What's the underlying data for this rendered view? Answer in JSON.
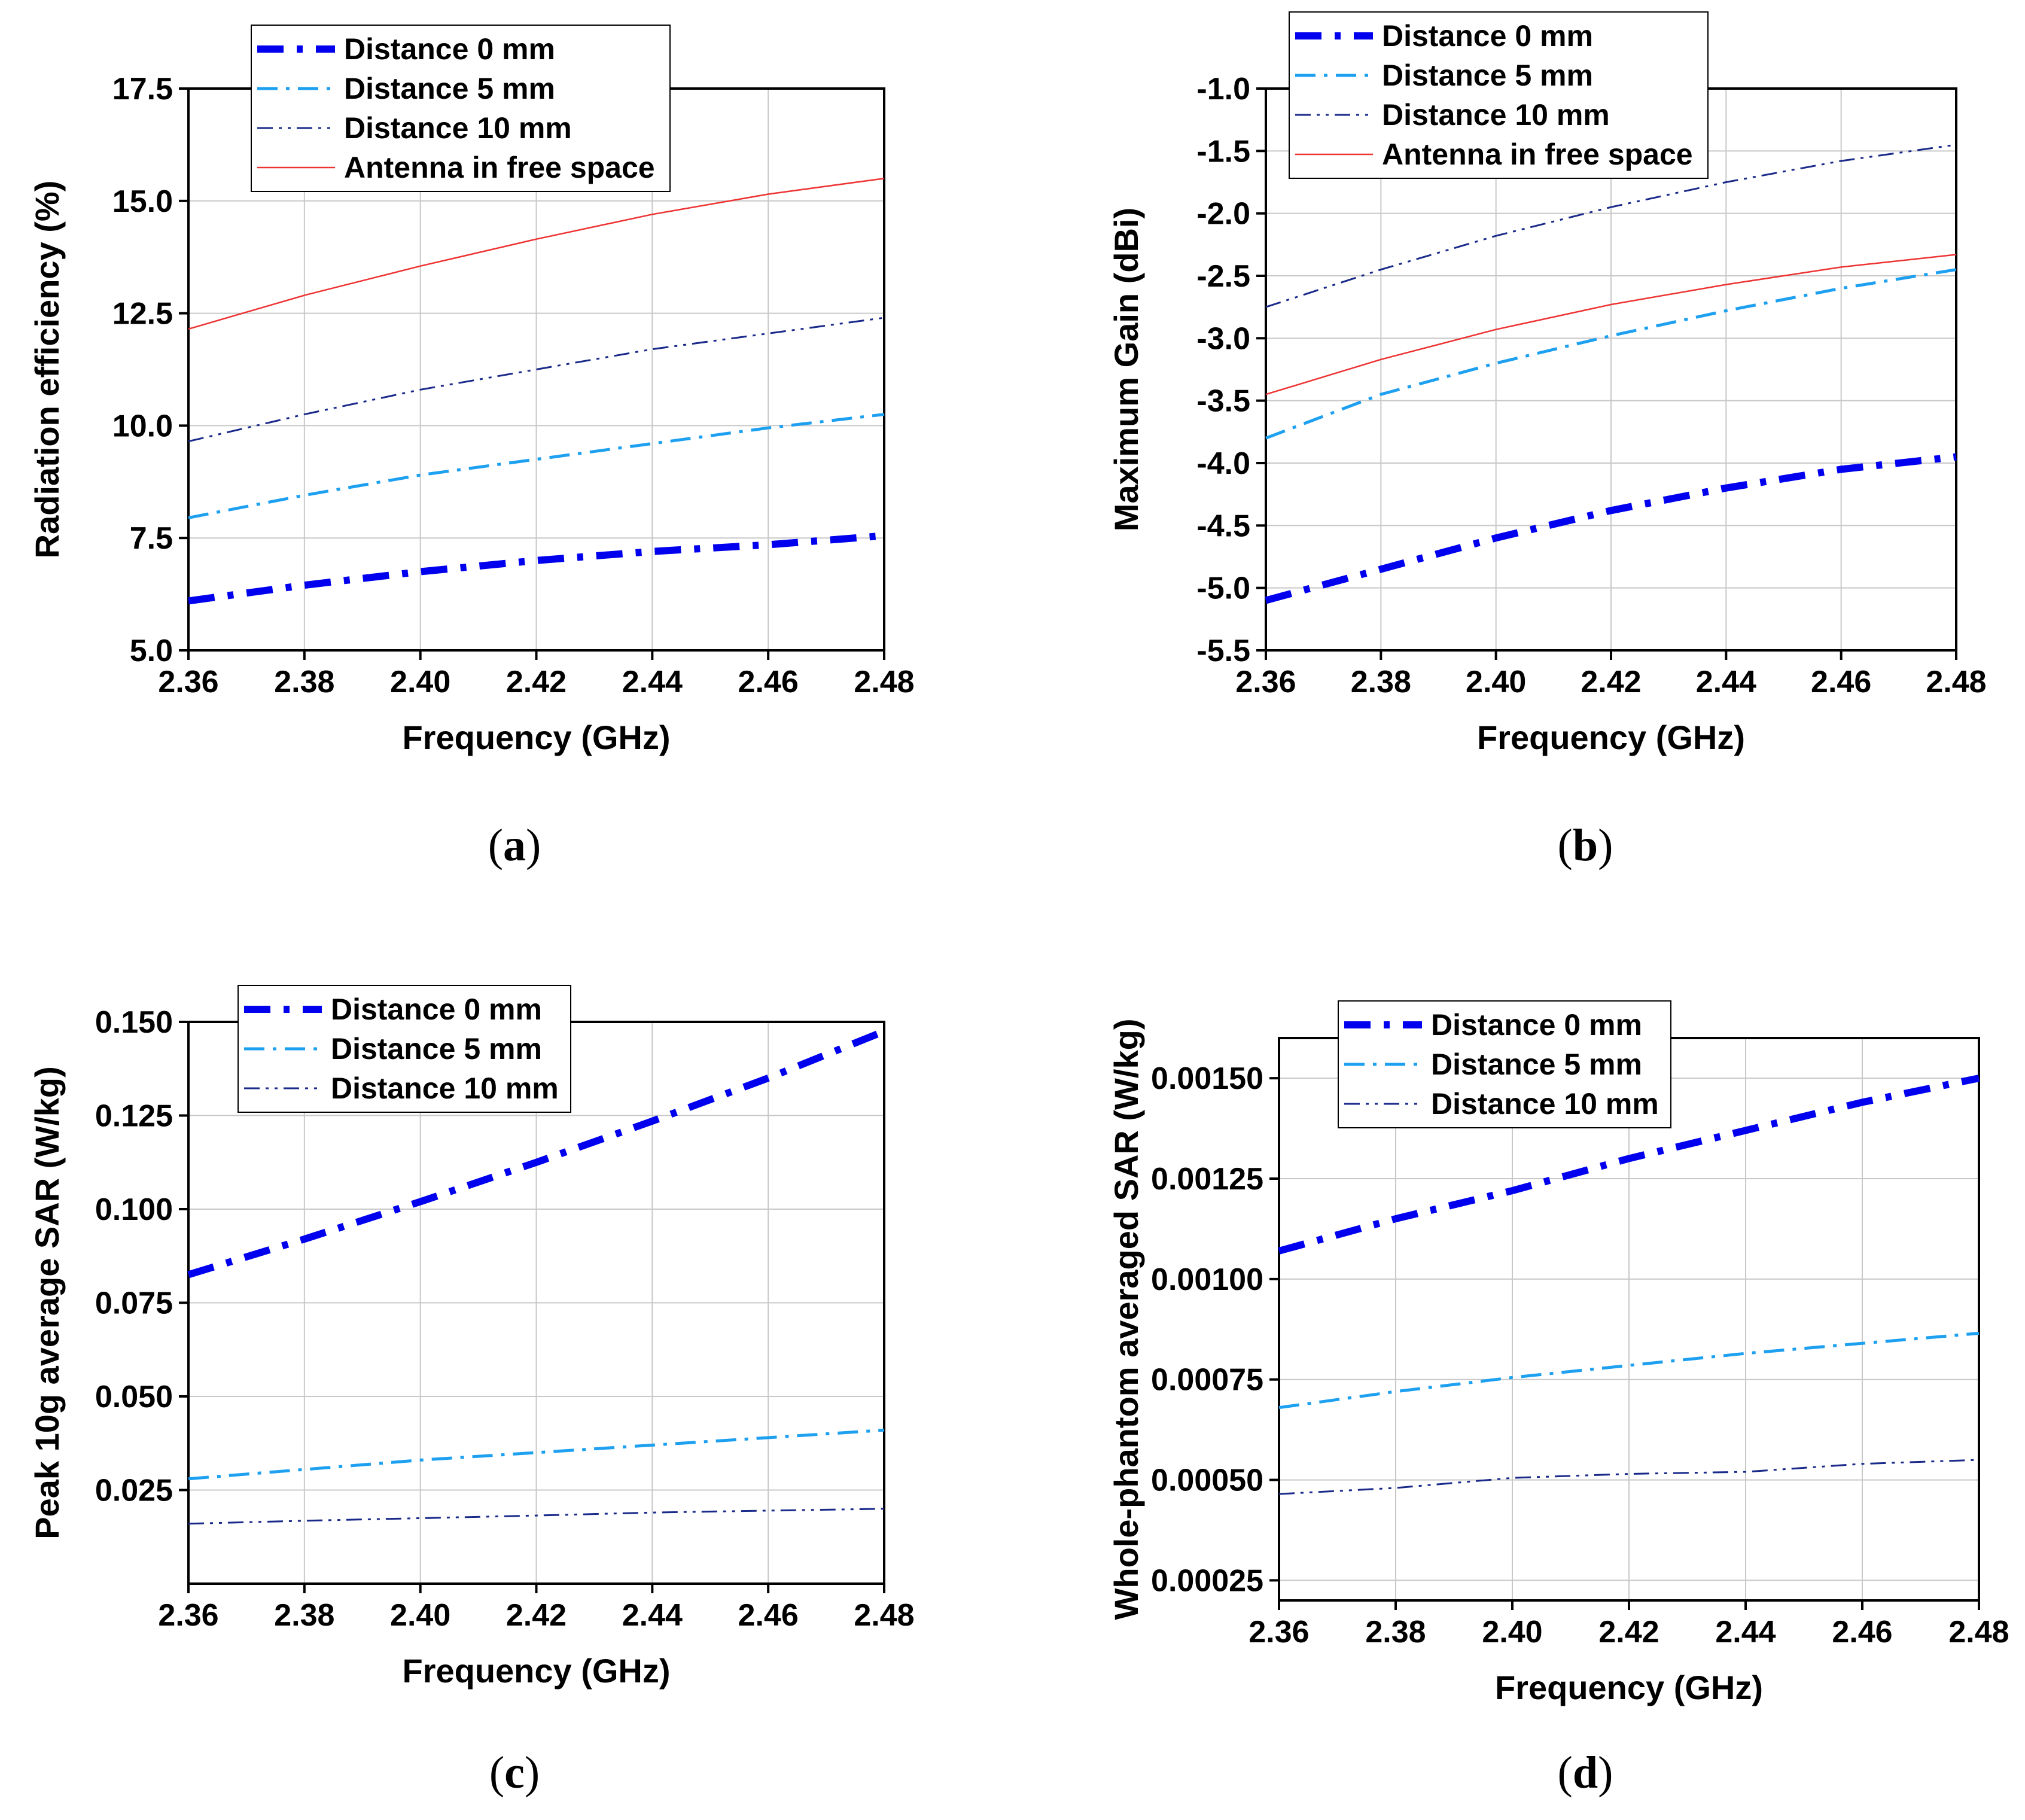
{
  "chart_data": [
    {
      "id": "a",
      "type": "line",
      "caption_letter": "a",
      "xlabel": "Frequency (GHz)",
      "ylabel": "Radiation efficiency (%)",
      "xlim": [
        2.36,
        2.48
      ],
      "ylim": [
        5.0,
        17.5
      ],
      "xticks": [
        "2.36",
        "2.38",
        "2.40",
        "2.42",
        "2.44",
        "2.46",
        "2.48"
      ],
      "yticks": [
        "5.0",
        "7.5",
        "10.0",
        "12.5",
        "15.0",
        "17.5"
      ],
      "grid": true,
      "legend_position": "top-center",
      "x": [
        2.36,
        2.38,
        2.4,
        2.42,
        2.44,
        2.46,
        2.48
      ],
      "series": [
        {
          "name": "Distance 0 mm",
          "style": "thick-dashdot",
          "color": "#0000ee",
          "values": [
            6.1,
            6.45,
            6.75,
            7.0,
            7.2,
            7.35,
            7.55
          ]
        },
        {
          "name": "Distance 5 mm",
          "style": "dashdot",
          "color": "#1ea0f0",
          "values": [
            7.95,
            8.45,
            8.9,
            9.25,
            9.6,
            9.95,
            10.25
          ]
        },
        {
          "name": "Distance 10 mm",
          "style": "thin-dashdotdot",
          "color": "#1a2a8a",
          "values": [
            9.65,
            10.25,
            10.8,
            11.25,
            11.7,
            12.05,
            12.4
          ]
        },
        {
          "name": "Antenna in free space",
          "style": "solid",
          "color": "#ee3333",
          "values": [
            12.15,
            12.9,
            13.55,
            14.15,
            14.7,
            15.15,
            15.5
          ]
        }
      ]
    },
    {
      "id": "b",
      "type": "line",
      "caption_letter": "b",
      "xlabel": "Frequency (GHz)",
      "ylabel": "Maximum Gain (dBi)",
      "xlim": [
        2.36,
        2.48
      ],
      "ylim": [
        -5.5,
        -1.0
      ],
      "xticks": [
        "2.36",
        "2.38",
        "2.40",
        "2.42",
        "2.44",
        "2.46",
        "2.48"
      ],
      "yticks": [
        "-5.5",
        "-5.0",
        "-4.5",
        "-4.0",
        "-3.5",
        "-3.0",
        "-2.5",
        "-2.0",
        "-1.5",
        "-1.0"
      ],
      "grid": true,
      "legend_position": "top-left",
      "x": [
        2.36,
        2.38,
        2.4,
        2.42,
        2.44,
        2.46,
        2.48
      ],
      "series": [
        {
          "name": "Distance 0 mm",
          "style": "thick-dashdot",
          "color": "#0000ee",
          "values": [
            -5.1,
            -4.85,
            -4.6,
            -4.38,
            -4.2,
            -4.05,
            -3.95
          ]
        },
        {
          "name": "Distance 5 mm",
          "style": "dashdot",
          "color": "#1ea0f0",
          "values": [
            -3.8,
            -3.45,
            -3.2,
            -2.98,
            -2.78,
            -2.6,
            -2.45
          ]
        },
        {
          "name": "Distance 10 mm",
          "style": "thin-dashdotdot",
          "color": "#1a2a8a",
          "values": [
            -2.75,
            -2.45,
            -2.18,
            -1.95,
            -1.75,
            -1.58,
            -1.45
          ]
        },
        {
          "name": "Antenna in free space",
          "style": "solid",
          "color": "#ee3333",
          "values": [
            -3.45,
            -3.17,
            -2.93,
            -2.73,
            -2.57,
            -2.43,
            -2.33
          ]
        }
      ]
    },
    {
      "id": "c",
      "type": "line",
      "caption_letter": "c",
      "xlabel": "Frequency (GHz)",
      "ylabel": "Peak 10g average SAR (W/kg)",
      "xlim": [
        2.36,
        2.48
      ],
      "ylim": [
        0.0,
        0.15
      ],
      "xticks": [
        "2.36",
        "2.38",
        "2.40",
        "2.42",
        "2.44",
        "2.46",
        "2.48"
      ],
      "yticks": [
        "0.025",
        "0.050",
        "0.075",
        "0.100",
        "0.125",
        "0.150"
      ],
      "grid": true,
      "legend_position": "top-left",
      "x": [
        2.36,
        2.38,
        2.4,
        2.42,
        2.44,
        2.46,
        2.48
      ],
      "series": [
        {
          "name": "Distance 0 mm",
          "style": "thick-dashdot",
          "color": "#0000ee",
          "values": [
            0.0825,
            0.092,
            0.102,
            0.1125,
            0.1235,
            0.135,
            0.1475
          ]
        },
        {
          "name": "Distance 5 mm",
          "style": "dashdot",
          "color": "#1ea0f0",
          "values": [
            0.028,
            0.0305,
            0.033,
            0.035,
            0.037,
            0.039,
            0.041
          ]
        },
        {
          "name": "Distance 10 mm",
          "style": "thin-dashdotdot",
          "color": "#1a2a8a",
          "values": [
            0.016,
            0.0168,
            0.0175,
            0.0182,
            0.019,
            0.0195,
            0.02
          ]
        }
      ]
    },
    {
      "id": "d",
      "type": "line",
      "caption_letter": "d",
      "xlabel": "Frequency (GHz)",
      "ylabel": "Whole-phantom averaged SAR (W/kg)",
      "xlim": [
        2.36,
        2.48
      ],
      "ylim": [
        0.0002,
        0.0016
      ],
      "xticks": [
        "2.36",
        "2.38",
        "2.40",
        "2.42",
        "2.44",
        "2.46",
        "2.48"
      ],
      "yticks": [
        "0.00025",
        "0.00050",
        "0.00075",
        "0.00100",
        "0.00125",
        "0.00150"
      ],
      "grid": true,
      "legend_position": "top-left",
      "x": [
        2.36,
        2.38,
        2.4,
        2.42,
        2.44,
        2.46,
        2.48
      ],
      "series": [
        {
          "name": "Distance 0 mm",
          "style": "thick-dashdot",
          "color": "#0000ee",
          "values": [
            0.00107,
            0.00115,
            0.00122,
            0.0013,
            0.00137,
            0.00144,
            0.0015
          ]
        },
        {
          "name": "Distance 5 mm",
          "style": "dashdot",
          "color": "#1ea0f0",
          "values": [
            0.00068,
            0.00072,
            0.000755,
            0.000785,
            0.000815,
            0.00084,
            0.000865
          ]
        },
        {
          "name": "Distance 10 mm",
          "style": "thin-dashdotdot",
          "color": "#1a2a8a",
          "values": [
            0.000465,
            0.00048,
            0.000505,
            0.000515,
            0.00052,
            0.00054,
            0.00055
          ]
        }
      ]
    }
  ]
}
